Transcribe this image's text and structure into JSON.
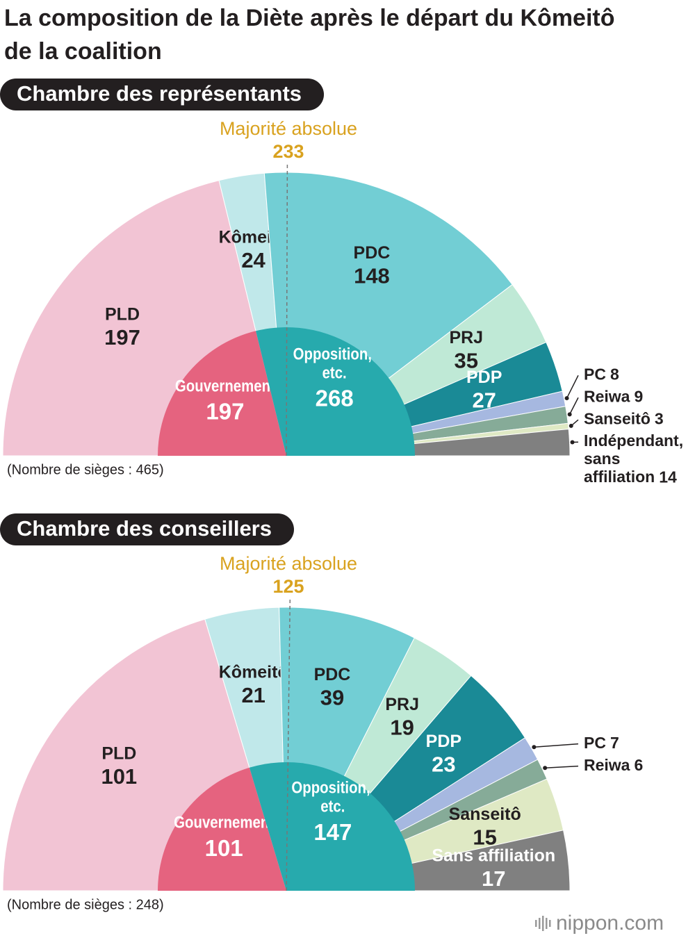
{
  "title": "La composition de la Diète après le départ du Kômeitô de la coalition",
  "chart_data": [
    {
      "type": "semicircle",
      "title": "Chambre des représentants",
      "majority_label": "Majorité absolue",
      "majority": 233,
      "categories": [
        "PLD",
        "Kômeitô",
        "PDC",
        "PRJ",
        "PDP",
        "PC",
        "Reiwa",
        "Sanseitô",
        "Indépendant, sans affiliation"
      ],
      "values": [
        197,
        24,
        148,
        35,
        27,
        8,
        9,
        3,
        14
      ],
      "colors": [
        "#f2c4d4",
        "#c0e8ea",
        "#72ced4",
        "#bfe9d6",
        "#1a8a96",
        "#a6b8e0",
        "#86ab98",
        "#dfe9c4",
        "#808080"
      ],
      "groups": {
        "categories": [
          "Gouvernement",
          "Opposition, etc."
        ],
        "values": [
          197,
          268
        ],
        "colors": [
          "#e5637f",
          "#27aaad"
        ]
      },
      "note": "(Nombre de sièges : 465)"
    },
    {
      "type": "semicircle",
      "title": "Chambre des conseillers",
      "majority_label": "Majorité absolue",
      "majority": 125,
      "categories": [
        "PLD",
        "Kômeitô",
        "PDC",
        "PRJ",
        "PDP",
        "PC",
        "Reiwa",
        "Sanseitô",
        "Sans affiliation"
      ],
      "values": [
        101,
        21,
        39,
        19,
        23,
        7,
        6,
        15,
        17
      ],
      "colors": [
        "#f2c4d4",
        "#c0e8ea",
        "#72ced4",
        "#bfe9d6",
        "#1a8a96",
        "#a6b8e0",
        "#86ab98",
        "#dfe9c4",
        "#808080"
      ],
      "groups": {
        "categories": [
          "Gouvernement",
          "Opposition, etc."
        ],
        "values": [
          101,
          147
        ],
        "colors": [
          "#e5637f",
          "#27aaad"
        ]
      },
      "note": "(Nombre de sièges : 248)"
    }
  ],
  "source": "nippon.com"
}
